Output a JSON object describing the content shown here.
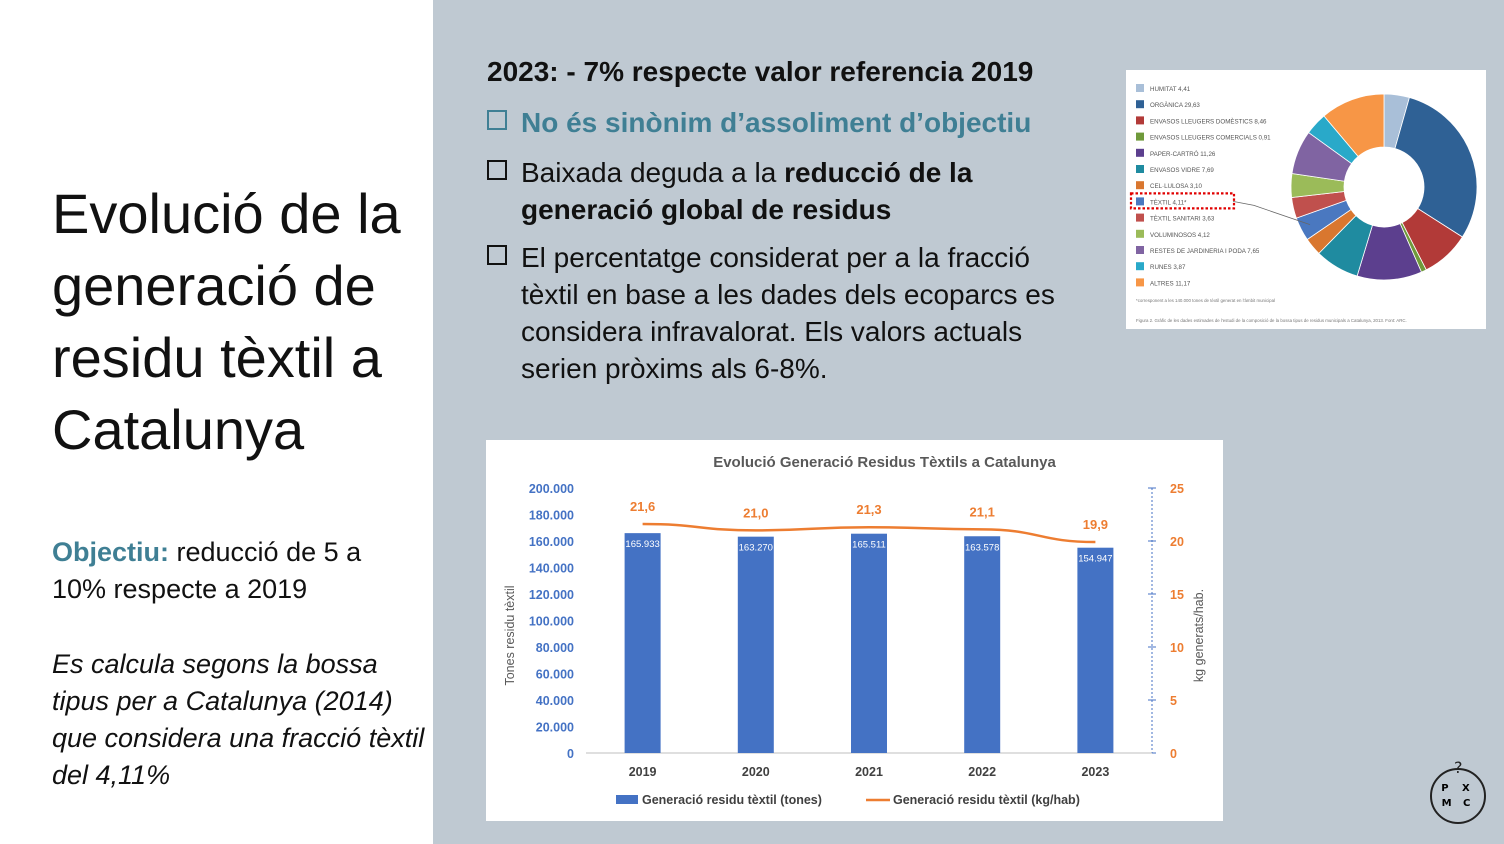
{
  "left": {
    "title": "Evolució de la generació de residu tèxtil a Catalunya",
    "objective_label": "Objectiu:",
    "objective_text": " reducció de 5 a 10% respecte a 2019",
    "note": "Es calcula segons la bossa tipus per a Catalunya (2014) que considera una fracció tèxtil del 4,11%"
  },
  "right": {
    "headline": "2023: - 7% respecte valor referencia 2019",
    "bullet1": "No és sinònim d’assoliment d’objectiu",
    "bullet2_pre": "Baixada deguda a la ",
    "bullet2_bold": "reducció de la generació global de residus",
    "bullet3": "El percentatge considerat per a la fracció tèxtil en base a les dades dels ecoparcs es considera infravalorat. Els valors actuals serien pròxims als 6-8%."
  },
  "pie": {
    "legend": [
      {
        "label": "HUMITAT 4,41",
        "value": 4.41,
        "color": "#a9bfd8"
      },
      {
        "label": "ORGÀNICA 29,63",
        "value": 29.63,
        "color": "#2f6195"
      },
      {
        "label": "ENVASOS LLEUGERS DOMÈSTICS 8,46",
        "value": 8.46,
        "color": "#b23a38"
      },
      {
        "label": "ENVASOS LLEUGERS COMERCIALS 0,91",
        "value": 0.91,
        "color": "#6f9a3b"
      },
      {
        "label": "PAPER-CARTRÓ 11,26",
        "value": 11.26,
        "color": "#5c3f8e"
      },
      {
        "label": "ENVASOS VIDRE 7,69",
        "value": 7.69,
        "color": "#1f8ba0"
      },
      {
        "label": "CEL·LULOSA 3,10",
        "value": 3.1,
        "color": "#d9772f"
      },
      {
        "label": "TÈXTIL 4,11*",
        "value": 4.11,
        "color": "#4a78c0"
      },
      {
        "label": "TÈXTIL SANITARI 3,63",
        "value": 3.63,
        "color": "#c0504d"
      },
      {
        "label": "VOLUMINOSOS 4,12",
        "value": 4.12,
        "color": "#9bbb59"
      },
      {
        "label": "RESTES DE JARDINERIA I PODA 7,65",
        "value": 7.65,
        "color": "#8064a2"
      },
      {
        "label": "RUNES 3,87",
        "value": 3.87,
        "color": "#29a9c9"
      },
      {
        "label": "ALTRES 11,17",
        "value": 11.17,
        "color": "#f79646"
      }
    ],
    "footnote": "*corresponent a les 140.000 tones de tèxtil generat en l'àmbit municipal",
    "caption": "Figura 2. Gràfic de les dades estimades de l'estudi de la composició de la bossa tipus de residus municipals a Catalunya, 2013. Font: ARC."
  },
  "chart_data": {
    "type": "bar",
    "title": "Evolució Generació Residus Tèxtils a Catalunya",
    "categories": [
      "2019",
      "2020",
      "2021",
      "2022",
      "2023"
    ],
    "series": [
      {
        "name": "Generació residu tèxtil (tones)",
        "type": "bar",
        "axis": "left",
        "color": "#4472c4",
        "values": [
          165933,
          163270,
          165511,
          163578,
          154947
        ],
        "labels": [
          "165.933",
          "163.270",
          "165.511",
          "163.578",
          "154.947"
        ]
      },
      {
        "name": "Generació residu tèxtil (kg/hab)",
        "type": "line",
        "axis": "right",
        "color": "#ed7d31",
        "values": [
          21.6,
          21.0,
          21.3,
          21.1,
          19.9
        ],
        "labels": [
          "21,6",
          "21,0",
          "21,3",
          "21,1",
          "19,9"
        ]
      }
    ],
    "ylabel": "Tones residu tèxtil",
    "y2label": "kg generats/hab.",
    "ylim": [
      0,
      200000
    ],
    "y2lim": [
      0,
      25
    ],
    "yticks": [
      "0",
      "20.000",
      "40.000",
      "60.000",
      "80.000",
      "100.000",
      "120.000",
      "140.000",
      "160.000",
      "180.000",
      "200.000"
    ],
    "y2ticks": [
      "0",
      "5",
      "10",
      "15",
      "20",
      "25"
    ],
    "legend_position": "bottom",
    "grid": false
  },
  "logo": {
    "top": "P X",
    "bottom": "M C"
  }
}
